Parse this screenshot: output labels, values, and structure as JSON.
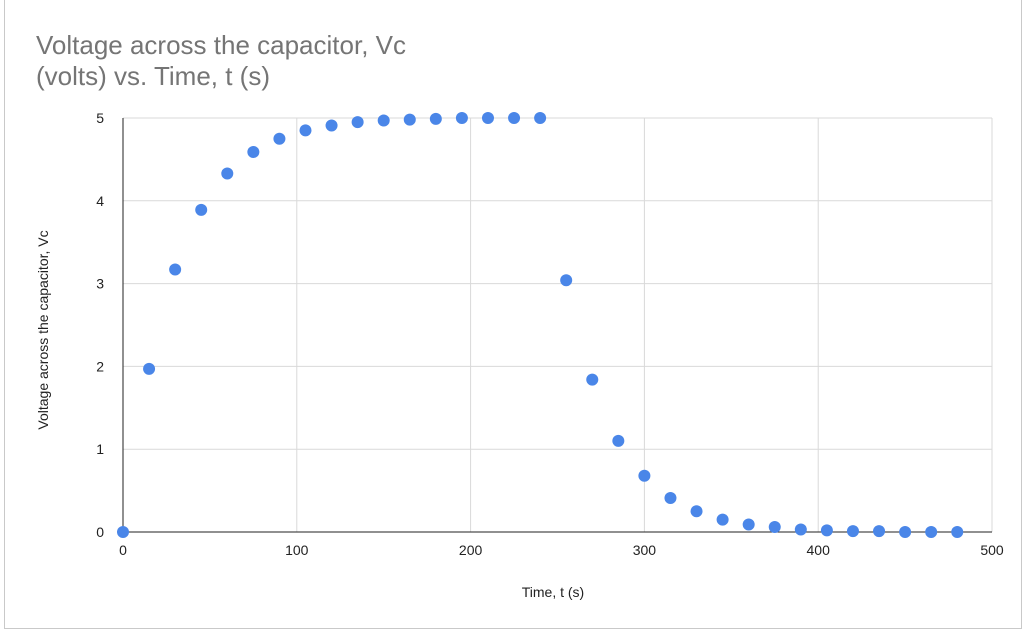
{
  "chart_data": {
    "type": "scatter",
    "title_line1": "Voltage across the capacitor, Vc",
    "title_line2": "(volts) vs. Time, t (s)",
    "xlabel": "Time, t (s)",
    "ylabel": "Voltage across the capacitor, Vc",
    "xlim": [
      0,
      500
    ],
    "ylim": [
      0,
      5
    ],
    "xticks": [
      "0",
      "100",
      "200",
      "300",
      "400",
      "500"
    ],
    "yticks": [
      "0",
      "1",
      "2",
      "3",
      "4",
      "5"
    ],
    "grid": true,
    "legend": "none",
    "marker_color": "#4a86e8",
    "series": [
      {
        "x": [
          0,
          15,
          30,
          45,
          60,
          75,
          90,
          105,
          120,
          135,
          150,
          165,
          180,
          195,
          210,
          225,
          240,
          255,
          270,
          285,
          300,
          315,
          330,
          345,
          360,
          375,
          390,
          405,
          420,
          435,
          450,
          465,
          480
        ],
        "y": [
          0.0,
          1.97,
          3.17,
          3.89,
          4.33,
          4.59,
          4.75,
          4.85,
          4.91,
          4.95,
          4.97,
          4.98,
          4.99,
          5.0,
          5.0,
          5.0,
          5.0,
          3.04,
          1.84,
          1.1,
          0.68,
          0.41,
          0.25,
          0.15,
          0.09,
          0.06,
          0.03,
          0.02,
          0.01,
          0.01,
          0.0,
          0.0,
          0.0
        ]
      }
    ]
  }
}
